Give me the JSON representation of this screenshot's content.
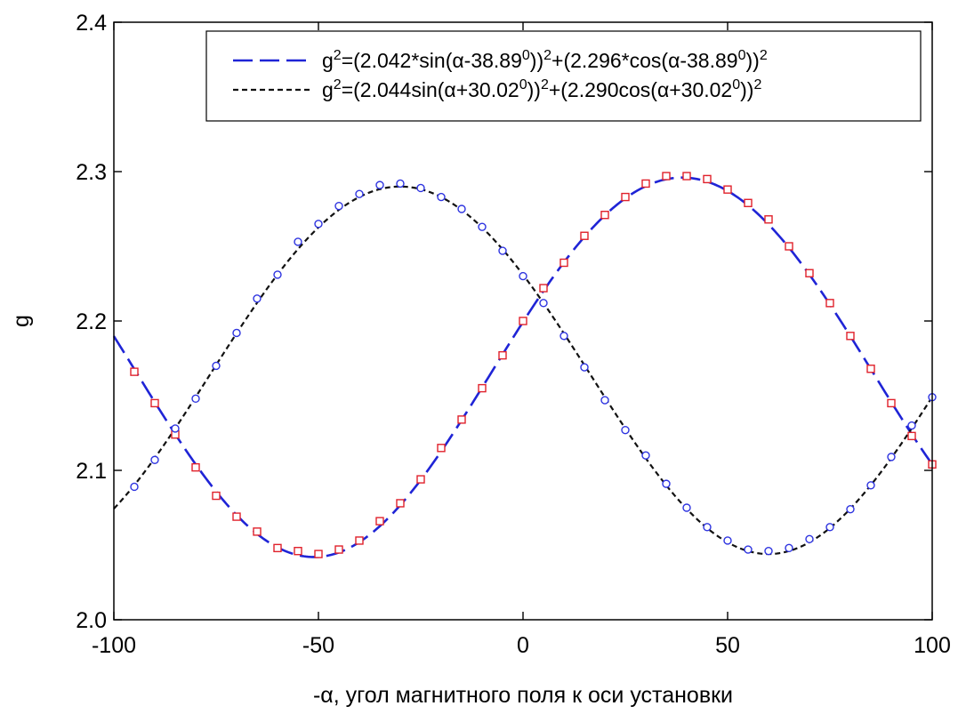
{
  "chart_data": {
    "type": "line",
    "xlabel": "-α, угол магнитного поля к оси установки",
    "ylabel": "g",
    "xlim": [
      -100,
      100
    ],
    "ylim": [
      2.0,
      2.4
    ],
    "x_ticks": [
      -100,
      -50,
      0,
      50,
      100
    ],
    "x_tick_labels": [
      "-100",
      "-50",
      "0",
      "50",
      "100"
    ],
    "y_ticks": [
      2.0,
      2.1,
      2.2,
      2.3,
      2.4
    ],
    "y_tick_labels": [
      "2.0",
      "2.1",
      "2.2",
      "2.3",
      "2.4"
    ],
    "grid": false,
    "legend_position": "top-right",
    "legend": {
      "entry1": {
        "lhs_base": "g",
        "lhs_sup": "2",
        "part1": "=(2.042*sin(α-38.89",
        "sup1": "0",
        "part2": "))",
        "sup2": "2",
        "part3": "+(2.296*cos(α-38.89",
        "sup3": "0",
        "part4": "))",
        "sup4": "2"
      },
      "entry2": {
        "lhs_base": "g",
        "lhs_sup": "2",
        "part1": "=(2.044sin(α+30.02",
        "sup1": "0",
        "part2": "))",
        "sup2": "2",
        "part3": "+(2.290cos(α+30.02",
        "sup3": "0",
        "part4": "))",
        "sup4": "2"
      }
    },
    "series": [
      {
        "kind": "fit-curve",
        "style": "long-dash",
        "color": "#1f24d6",
        "a": 2.042,
        "b": 2.296,
        "shift_deg": -38.89,
        "x_range": [
          -100,
          100
        ]
      },
      {
        "kind": "fit-curve",
        "style": "short-dash",
        "color": "#111111",
        "a": 2.044,
        "b": 2.29,
        "shift_deg": 30.02,
        "x_range": [
          -100,
          100
        ]
      },
      {
        "kind": "points",
        "marker": "square",
        "color": "#e0212b",
        "x": [
          -95,
          -90,
          -85,
          -80,
          -75,
          -70,
          -65,
          -60,
          -55,
          -50,
          -45,
          -40,
          -35,
          -30,
          -25,
          -20,
          -15,
          -10,
          -5,
          0,
          5,
          10,
          15,
          20,
          25,
          30,
          35,
          40,
          45,
          50,
          55,
          60,
          65,
          70,
          75,
          80,
          85,
          90,
          95,
          100
        ],
        "y": [
          2.166,
          2.145,
          2.124,
          2.102,
          2.083,
          2.069,
          2.059,
          2.048,
          2.046,
          2.044,
          2.047,
          2.053,
          2.066,
          2.078,
          2.094,
          2.115,
          2.134,
          2.155,
          2.177,
          2.2,
          2.222,
          2.239,
          2.257,
          2.271,
          2.283,
          2.292,
          2.297,
          2.297,
          2.295,
          2.288,
          2.279,
          2.268,
          2.25,
          2.232,
          2.212,
          2.19,
          2.168,
          2.145,
          2.123,
          2.104
        ]
      },
      {
        "kind": "points",
        "marker": "circle",
        "color": "#2d33e0",
        "x": [
          -95,
          -90,
          -85,
          -80,
          -75,
          -70,
          -65,
          -60,
          -55,
          -50,
          -45,
          -40,
          -35,
          -30,
          -25,
          -20,
          -15,
          -10,
          -5,
          0,
          5,
          10,
          15,
          20,
          25,
          30,
          35,
          40,
          45,
          50,
          55,
          60,
          65,
          70,
          75,
          80,
          85,
          90,
          95,
          100
        ],
        "y": [
          2.089,
          2.107,
          2.128,
          2.148,
          2.17,
          2.192,
          2.215,
          2.231,
          2.253,
          2.265,
          2.277,
          2.285,
          2.291,
          2.292,
          2.289,
          2.283,
          2.275,
          2.263,
          2.247,
          2.23,
          2.212,
          2.19,
          2.169,
          2.147,
          2.127,
          2.11,
          2.091,
          2.075,
          2.062,
          2.053,
          2.047,
          2.046,
          2.048,
          2.054,
          2.062,
          2.074,
          2.09,
          2.109,
          2.13,
          2.149
        ]
      }
    ]
  }
}
